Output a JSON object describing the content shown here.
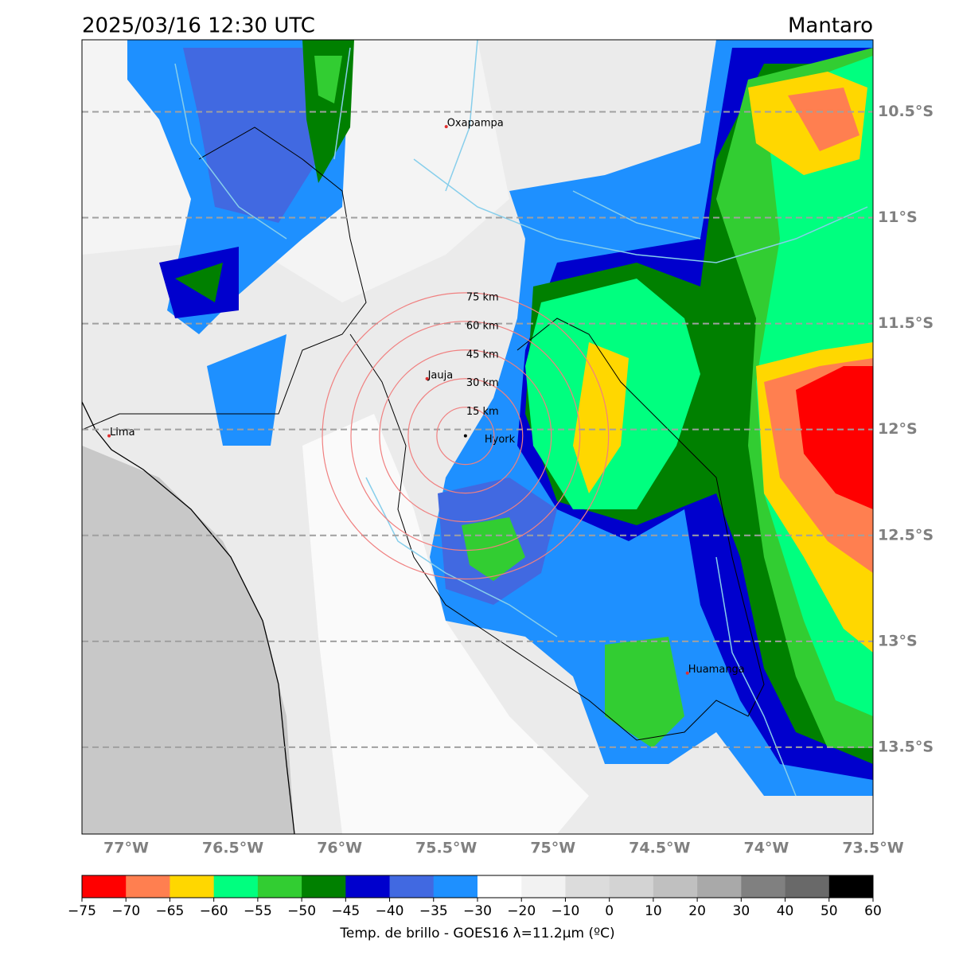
{
  "header": {
    "title": "2025/03/16 12:30 UTC",
    "region": "Mantaro"
  },
  "map": {
    "xlim": [
      -77.207,
      -73.5
    ],
    "ylim": [
      -13.91,
      -10.16
    ],
    "grid": true,
    "lon_ticks": [
      {
        "value": -77,
        "label": "77°W"
      },
      {
        "value": -76.5,
        "label": "76.5°W"
      },
      {
        "value": -76,
        "label": "76°W"
      },
      {
        "value": -75.5,
        "label": "75.5°W"
      },
      {
        "value": -75,
        "label": "75°W"
      },
      {
        "value": -74.5,
        "label": "74.5°W"
      },
      {
        "value": -74,
        "label": "74°W"
      },
      {
        "value": -73.5,
        "label": "73.5°W"
      }
    ],
    "lat_ticks": [
      {
        "value": -10.5,
        "label": "10.5°S"
      },
      {
        "value": -11,
        "label": "11°S"
      },
      {
        "value": -11.5,
        "label": "11.5°S"
      },
      {
        "value": -12,
        "label": "12°S"
      },
      {
        "value": -12.5,
        "label": "12.5°S"
      },
      {
        "value": -13,
        "label": "13°S"
      },
      {
        "value": -13.5,
        "label": "13.5°S"
      }
    ],
    "places": [
      {
        "name": "Oxapampa",
        "lon": -75.5,
        "lat": -10.57
      },
      {
        "name": "Jauja",
        "lon": -75.59,
        "lat": -11.76
      },
      {
        "name": "Lima",
        "lon": -77.08,
        "lat": -12.03
      },
      {
        "name": "Huamanga",
        "lon": -74.37,
        "lat": -13.15
      }
    ],
    "radar": {
      "name": "Hyork",
      "lon": -75.41,
      "lat": -12.03,
      "rings": [
        {
          "value": 15,
          "label": "15 km"
        },
        {
          "value": 30,
          "label": "30 km"
        },
        {
          "value": 45,
          "label": "45 km"
        },
        {
          "value": 60,
          "label": "60 km"
        },
        {
          "value": 75,
          "label": "75 km"
        }
      ]
    }
  },
  "colorbar": {
    "label": "Temp. de brillo - GOES16 λ=11.2μm (ºC)",
    "ticks": [
      {
        "value": -75,
        "label": "−75"
      },
      {
        "value": -70,
        "label": "−70"
      },
      {
        "value": -65,
        "label": "−65"
      },
      {
        "value": -60,
        "label": "−60"
      },
      {
        "value": -55,
        "label": "−55"
      },
      {
        "value": -50,
        "label": "−50"
      },
      {
        "value": -45,
        "label": "−45"
      },
      {
        "value": -40,
        "label": "−40"
      },
      {
        "value": -35,
        "label": "−35"
      },
      {
        "value": -30,
        "label": "−30"
      },
      {
        "value": -20,
        "label": "−20"
      },
      {
        "value": -10,
        "label": "−10"
      },
      0,
      10,
      20,
      30,
      40,
      50,
      60
    ],
    "colors": [
      "#ff0000",
      "#ff7f50",
      "#ffd700",
      "#00ff7f",
      "#32cd32",
      "#008000",
      "#0000cd",
      "#4169e1",
      "#1e90ff",
      "#ffffff",
      "#f2f2f2",
      "#dcdcdc",
      "#d3d3d3",
      "#c0c0c0",
      "#a9a9a9",
      "#808080",
      "#696969",
      "#000000"
    ]
  }
}
